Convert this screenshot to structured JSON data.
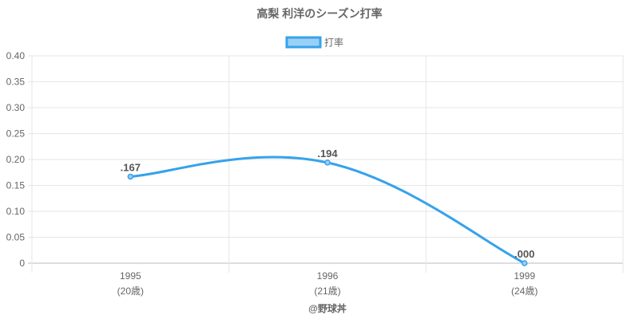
{
  "chart_data": {
    "type": "line",
    "title": "高梨 利洋のシーズン打率",
    "legend": {
      "label": "打率",
      "position": "top"
    },
    "categories": [
      "1995",
      "1996",
      "1999"
    ],
    "sublabels": [
      "(20歳)",
      "(21歳)",
      "(24歳)"
    ],
    "series": [
      {
        "name": "打率",
        "values": [
          0.167,
          0.194,
          0.0
        ],
        "labels": [
          ".167",
          ".194",
          ".000"
        ]
      }
    ],
    "ylim": [
      0,
      0.4
    ],
    "yticks": [
      "0",
      "0.05",
      "0.10",
      "0.15",
      "0.20",
      "0.25",
      "0.30",
      "0.35",
      "0.40"
    ],
    "grid": true,
    "line_color": "#36a2eb",
    "fill_color": "#9ad0f5"
  },
  "footer": "@野球丼"
}
